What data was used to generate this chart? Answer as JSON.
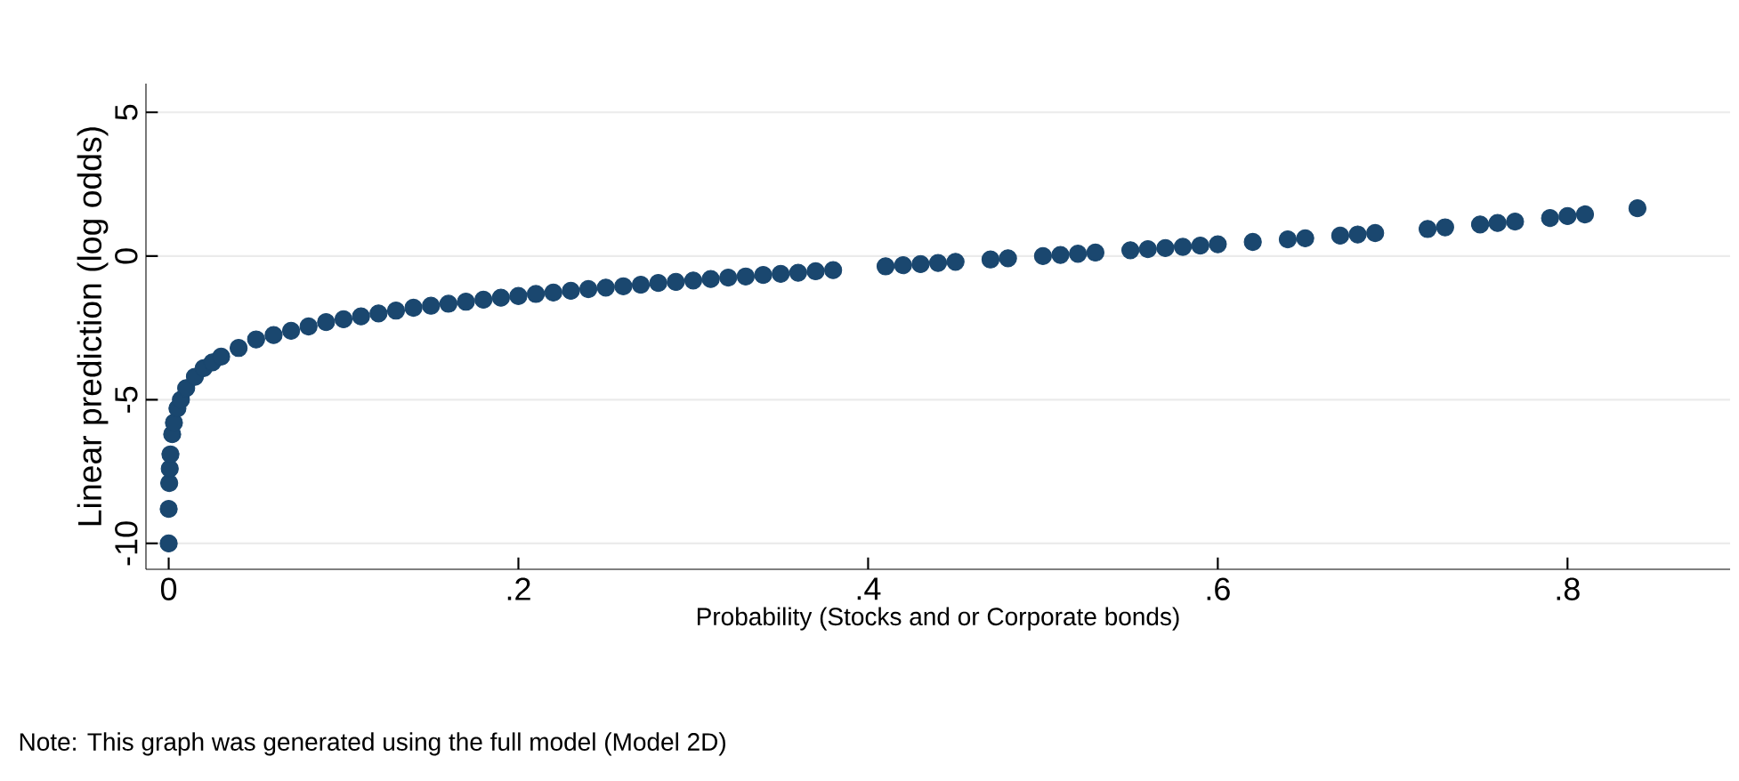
{
  "chart_data": {
    "type": "scatter",
    "xlabel": "Probability (Stocks and or Corporate bonds)",
    "ylabel": "Linear prediction (log odds)",
    "annotations": [
      "Note: This graph was generated using the full model (Model 2D)"
    ],
    "x": [
      0,
      0,
      0.0003,
      0.0006,
      0.001,
      0.002,
      0.003,
      0.005,
      0.007,
      0.01,
      0.015,
      0.02,
      0.025,
      0.03,
      0.04,
      0.05,
      0.06,
      0.07,
      0.08,
      0.09,
      0.1,
      0.11,
      0.12,
      0.13,
      0.14,
      0.15,
      0.16,
      0.17,
      0.18,
      0.19,
      0.2,
      0.21,
      0.22,
      0.23,
      0.24,
      0.25,
      0.26,
      0.27,
      0.28,
      0.29,
      0.3,
      0.31,
      0.32,
      0.33,
      0.34,
      0.35,
      0.36,
      0.37,
      0.38,
      0.41,
      0.42,
      0.43,
      0.44,
      0.45,
      0.47,
      0.48,
      0.5,
      0.51,
      0.52,
      0.53,
      0.55,
      0.56,
      0.57,
      0.58,
      0.59,
      0.6,
      0.62,
      0.64,
      0.65,
      0.67,
      0.68,
      0.69,
      0.72,
      0.73,
      0.75,
      0.76,
      0.77,
      0.79,
      0.8,
      0.81,
      0.84
    ],
    "values": [
      -10,
      -8.8,
      -7.9,
      -7.4,
      -6.9,
      -6.2,
      -5.8,
      -5.3,
      -5.0,
      -4.6,
      -4.2,
      -3.9,
      -3.7,
      -3.5,
      -3.2,
      -2.9,
      -2.75,
      -2.6,
      -2.45,
      -2.3,
      -2.2,
      -2.1,
      -2.0,
      -1.9,
      -1.8,
      -1.73,
      -1.66,
      -1.59,
      -1.52,
      -1.45,
      -1.39,
      -1.32,
      -1.27,
      -1.21,
      -1.15,
      -1.1,
      -1.05,
      -1.0,
      -0.94,
      -0.9,
      -0.85,
      -0.8,
      -0.75,
      -0.71,
      -0.66,
      -0.62,
      -0.58,
      -0.53,
      -0.49,
      -0.36,
      -0.32,
      -0.28,
      -0.24,
      -0.2,
      -0.12,
      -0.08,
      0,
      0.04,
      0.08,
      0.12,
      0.2,
      0.24,
      0.28,
      0.32,
      0.36,
      0.41,
      0.49,
      0.58,
      0.62,
      0.71,
      0.75,
      0.8,
      0.94,
      1.0,
      1.1,
      1.15,
      1.2,
      1.32,
      1.39,
      1.45,
      1.66
    ],
    "color": "#1a476f",
    "marker": "circle",
    "grid": "y",
    "xlim": [
      -0.013,
      0.893
    ],
    "ylim": [
      -10.9,
      6
    ],
    "xticks": [
      0,
      {
        "value": 0.2,
        "label": ".2"
      },
      {
        "value": 0.4,
        "label": ".4"
      },
      {
        "value": 0.6,
        "label": ".6"
      },
      {
        "value": 0.8,
        "label": ".8"
      }
    ],
    "yticks": [
      -10,
      -5,
      0,
      5
    ]
  }
}
